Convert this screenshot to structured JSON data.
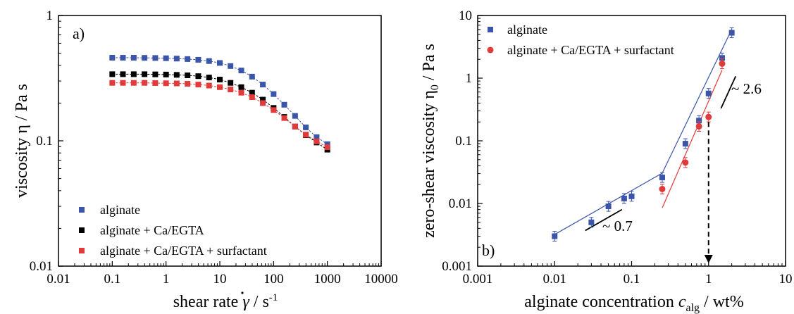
{
  "chart_data": [
    {
      "type": "scatter",
      "panel_label": "a)",
      "xlabel": "shear rate γ̇ / s⁻¹",
      "ylabel": "viscosity η / Pa s",
      "xscale": "log",
      "yscale": "log",
      "xlim": [
        0.01,
        10000
      ],
      "ylim": [
        0.01,
        1
      ],
      "xticks": [
        "0.01",
        "0.1",
        "1",
        "10",
        "100",
        "1000",
        "10000"
      ],
      "yticks": [
        "0.01",
        "0.1",
        "1"
      ],
      "legend_position": "bottom-left",
      "x": [
        0.1,
        0.158,
        0.251,
        0.398,
        0.631,
        1,
        1.58,
        2.51,
        3.98,
        6.31,
        10,
        15.8,
        25.1,
        39.8,
        63.1,
        100,
        158,
        251,
        398,
        631,
        1000
      ],
      "series": [
        {
          "name": "alginate",
          "color": "#3b55a8",
          "values": [
            0.46,
            0.46,
            0.46,
            0.459,
            0.458,
            0.456,
            0.453,
            0.449,
            0.443,
            0.433,
            0.418,
            0.395,
            0.364,
            0.325,
            0.281,
            0.236,
            0.194,
            0.158,
            0.128,
            0.107,
            0.094
          ]
        },
        {
          "name": "alginate + Ca/EGTA",
          "color": "#000000",
          "values": [
            0.34,
            0.34,
            0.34,
            0.34,
            0.339,
            0.338,
            0.336,
            0.333,
            0.328,
            0.32,
            0.308,
            0.29,
            0.268,
            0.242,
            0.213,
            0.183,
            0.155,
            0.13,
            0.111,
            0.097,
            0.085
          ]
        },
        {
          "name": "alginate + Ca/EGTA + surfactant",
          "color": "#e03a3a",
          "values": [
            0.29,
            0.29,
            0.29,
            0.29,
            0.289,
            0.288,
            0.287,
            0.285,
            0.281,
            0.276,
            0.268,
            0.257,
            0.242,
            0.223,
            0.2,
            0.176,
            0.152,
            0.13,
            0.112,
            0.099,
            0.089
          ]
        }
      ]
    },
    {
      "type": "scatter",
      "panel_label": "b)",
      "xlabel": "alginate concentration c_alg / wt%",
      "ylabel": "zero-shear viscosity η₀ / Pa s",
      "xscale": "log",
      "yscale": "log",
      "xlim": [
        0.001,
        10
      ],
      "ylim": [
        0.001,
        10
      ],
      "xticks": [
        "0.001",
        "0.01",
        "0.1",
        "1",
        "10"
      ],
      "yticks": [
        "0.001",
        "0.01",
        "0.1",
        "1",
        "10"
      ],
      "legend_position": "top-left",
      "series": [
        {
          "name": "alginate",
          "color": "#3b55a8",
          "x": [
            0.01,
            0.03,
            0.05,
            0.08,
            0.1,
            0.25,
            0.5,
            0.75,
            1.0,
            1.5,
            2.0
          ],
          "values": [
            0.003,
            0.005,
            0.009,
            0.012,
            0.013,
            0.026,
            0.09,
            0.21,
            0.57,
            2.1,
            5.3
          ]
        },
        {
          "name": "alginate + Ca/EGTA + surfactant",
          "color": "#e03a3a",
          "x": [
            0.25,
            0.5,
            0.75,
            1.0,
            1.5
          ],
          "values": [
            0.017,
            0.045,
            0.17,
            0.24,
            1.7
          ]
        }
      ],
      "annotations": [
        {
          "text": "~ 0.7"
        },
        {
          "text": "~ 2.6"
        }
      ]
    }
  ]
}
